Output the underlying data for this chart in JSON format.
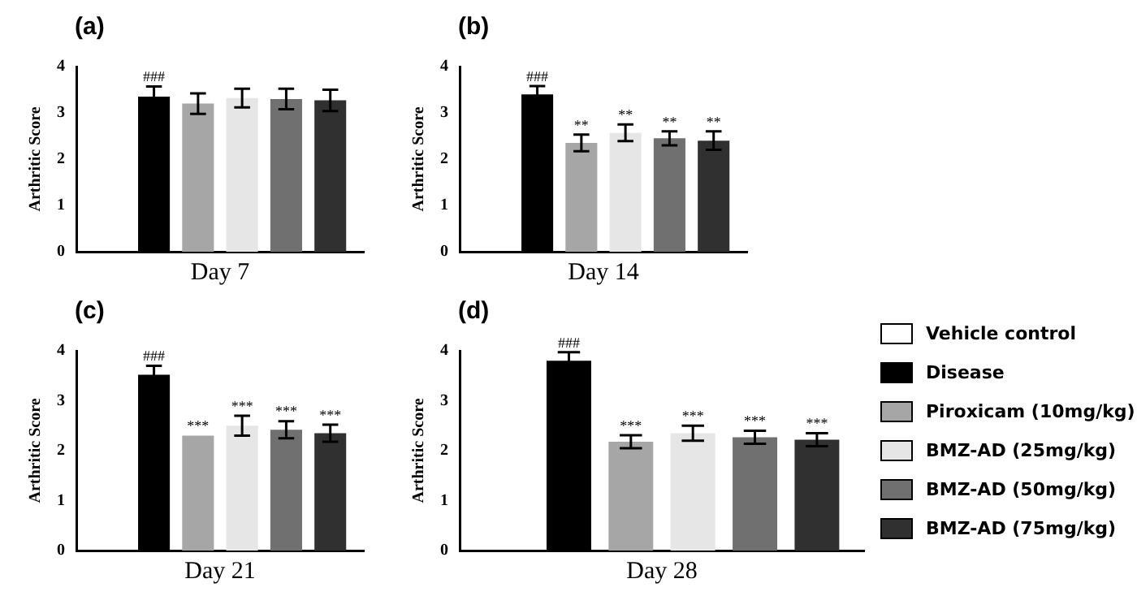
{
  "chart_data": [
    {
      "type": "bar",
      "title": "(a)",
      "xlabel": "Day 7",
      "ylabel": "Arthritic Score",
      "categories": [
        null
      ],
      "ylim": [
        0,
        4
      ],
      "yticks": [
        0,
        1,
        2,
        3,
        4
      ],
      "grid": false,
      "tick_labels": "y",
      "series": [
        {
          "color": "#ffffff",
          "values": [
            0
          ]
        },
        {
          "color": "#000000",
          "values": [
            3.35
          ],
          "errors": [
            0.22
          ],
          "value_labels": [
            "###"
          ]
        },
        {
          "color": "#a6a6a6",
          "values": [
            3.2
          ],
          "errors": [
            0.22
          ]
        },
        {
          "color": "#e6e6e6",
          "values": [
            3.32
          ],
          "errors": [
            0.2
          ]
        },
        {
          "color": "#707070",
          "values": [
            3.3
          ],
          "errors": [
            0.22
          ]
        },
        {
          "color": "#303030",
          "values": [
            3.27
          ],
          "errors": [
            0.23
          ]
        }
      ]
    },
    {
      "type": "bar",
      "title": "(b)",
      "xlabel": "Day 14",
      "ylabel": "Arthritic Score",
      "categories": [
        null
      ],
      "ylim": [
        0,
        4
      ],
      "yticks": [
        0,
        1,
        2,
        3,
        4
      ],
      "grid": false,
      "tick_labels": "y",
      "series": [
        {
          "color": "#ffffff",
          "values": [
            0
          ]
        },
        {
          "color": "#000000",
          "values": [
            3.4
          ],
          "errors": [
            0.18
          ],
          "value_labels": [
            "###"
          ]
        },
        {
          "color": "#a6a6a6",
          "values": [
            2.35
          ],
          "errors": [
            0.18
          ],
          "value_labels": [
            "**"
          ]
        },
        {
          "color": "#e6e6e6",
          "values": [
            2.57
          ],
          "errors": [
            0.18
          ],
          "value_labels": [
            "**"
          ]
        },
        {
          "color": "#707070",
          "values": [
            2.45
          ],
          "errors": [
            0.15
          ],
          "value_labels": [
            "**"
          ]
        },
        {
          "color": "#303030",
          "values": [
            2.4
          ],
          "errors": [
            0.2
          ],
          "value_labels": [
            "**"
          ]
        }
      ]
    },
    {
      "type": "bar",
      "title": "(c)",
      "xlabel": "Day 21",
      "ylabel": "Arthritic Score",
      "categories": [
        null
      ],
      "ylim": [
        0,
        4
      ],
      "yticks": [
        0,
        1,
        2,
        3,
        4
      ],
      "grid": false,
      "tick_labels": "y",
      "series": [
        {
          "color": "#ffffff",
          "values": [
            0
          ]
        },
        {
          "color": "#000000",
          "values": [
            3.52
          ],
          "errors": [
            0.18
          ],
          "value_labels": [
            "###"
          ]
        },
        {
          "color": "#a6a6a6",
          "values": [
            2.3
          ],
          "errors": [
            null
          ],
          "value_labels": [
            "***"
          ]
        },
        {
          "color": "#e6e6e6",
          "values": [
            2.5
          ],
          "errors": [
            0.2
          ],
          "value_labels": [
            "***"
          ]
        },
        {
          "color": "#707070",
          "values": [
            2.42
          ],
          "errors": [
            0.17
          ],
          "value_labels": [
            "***"
          ]
        },
        {
          "color": "#303030",
          "values": [
            2.35
          ],
          "errors": [
            0.17
          ],
          "value_labels": [
            "***"
          ]
        }
      ]
    },
    {
      "type": "bar",
      "title": "(d)",
      "xlabel": "Day 28",
      "ylabel": "Arthritic Score",
      "categories": [
        null
      ],
      "ylim": [
        0,
        4
      ],
      "yticks": [
        0,
        1,
        2,
        3,
        4
      ],
      "grid": false,
      "tick_labels": "y",
      "legend": "right",
      "series": [
        {
          "name": "Vehicle control",
          "color": "#ffffff",
          "values": [
            0
          ]
        },
        {
          "name": "Disease",
          "color": "#000000",
          "values": [
            3.8
          ],
          "errors": [
            0.17
          ],
          "value_labels": [
            "###"
          ]
        },
        {
          "name": "Piroxicam (10mg/kg)",
          "color": "#a6a6a6",
          "values": [
            2.18
          ],
          "errors": [
            0.13
          ],
          "value_labels": [
            "***"
          ]
        },
        {
          "name": "BMZ-AD (25mg/kg)",
          "color": "#e6e6e6",
          "values": [
            2.35
          ],
          "errors": [
            0.15
          ],
          "value_labels": [
            "***"
          ]
        },
        {
          "name": "BMZ-AD (50mg/kg)",
          "color": "#707070",
          "values": [
            2.27
          ],
          "errors": [
            0.13
          ],
          "value_labels": [
            "***"
          ]
        },
        {
          "name": "BMZ-AD (75mg/kg)",
          "color": "#303030",
          "values": [
            2.22
          ],
          "errors": [
            0.13
          ],
          "value_labels": [
            "***"
          ]
        }
      ]
    }
  ]
}
